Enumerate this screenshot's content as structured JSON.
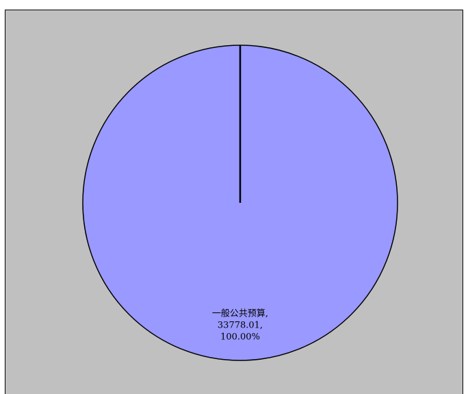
{
  "chart_data": {
    "type": "pie",
    "title": "",
    "legend": "none",
    "background_color": "#c0c0c0",
    "slices": [
      {
        "label": "一般公共预算",
        "value": 33778.01,
        "value_text": "33778.01",
        "percent": 100.0,
        "percent_text": "100.00%",
        "color": "#9999ff"
      }
    ]
  }
}
